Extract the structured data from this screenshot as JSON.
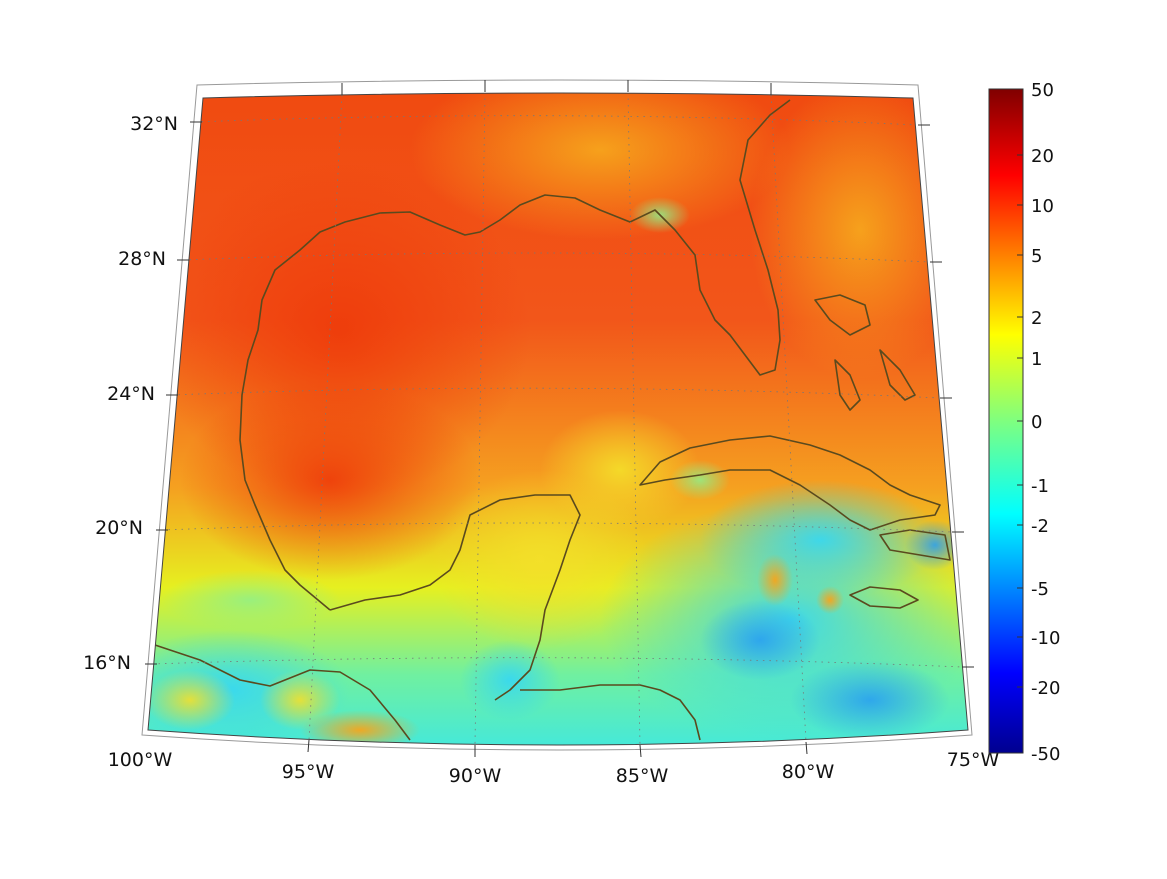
{
  "map": {
    "lat_labels": [
      "32°N",
      "28°N",
      "24°N",
      "20°N",
      "16°N"
    ],
    "lon_labels": [
      "100°W",
      "95°W",
      "90°W",
      "85°W",
      "80°W",
      "75°W"
    ],
    "extent": {
      "lon_min": -100,
      "lon_max": -75,
      "lat_min": 14.5,
      "lat_max": 32.5
    },
    "coastline_color": "#5a4a1e",
    "grid_style": "dotted"
  },
  "colorbar": {
    "tick_labels": [
      "50",
      "20",
      "10",
      "5",
      "2",
      "1",
      "0",
      "-1",
      "-2",
      "-5",
      "-10",
      "-20",
      "-50"
    ],
    "colormap": "jet",
    "scale": "symmetric-log"
  }
}
